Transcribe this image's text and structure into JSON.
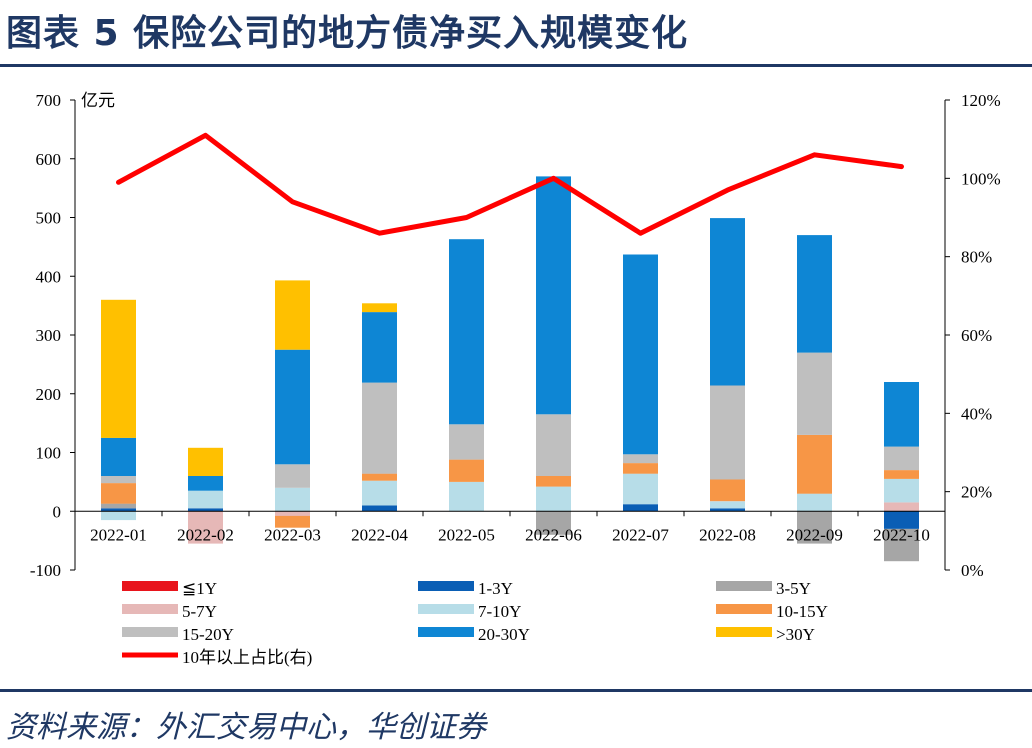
{
  "title": "图表 5  保险公司的地方债净买入规模变化",
  "source": "资料来源：外汇交易中心，华创证券",
  "chart_data": {
    "type": "bar",
    "stacked": true,
    "categories": [
      "2022-01",
      "2022-02",
      "2022-03",
      "2022-04",
      "2022-05",
      "2022-06",
      "2022-07",
      "2022-08",
      "2022-09",
      "2022-10"
    ],
    "y_left": {
      "unit": "亿元",
      "min": -100,
      "max": 700,
      "ticks": [
        -100,
        0,
        100,
        200,
        300,
        400,
        500,
        600,
        700
      ]
    },
    "y_right": {
      "min": 0,
      "max": 120,
      "ticks": [
        "0%",
        "20%",
        "40%",
        "60%",
        "80%",
        "100%",
        "120%"
      ]
    },
    "series": [
      {
        "name": "≦1Y",
        "color": "#e8141c",
        "values": [
          0,
          0,
          0,
          0,
          0,
          0,
          0,
          0,
          0,
          0
        ]
      },
      {
        "name": "1-3Y",
        "color": "#0a5eb5",
        "values": [
          5,
          5,
          0,
          10,
          0,
          0,
          12,
          5,
          0,
          -30
        ]
      },
      {
        "name": "3-5Y",
        "color": "#a6a6a6",
        "values": [
          8,
          0,
          0,
          0,
          0,
          -40,
          0,
          0,
          -55,
          -55
        ]
      },
      {
        "name": "5-7Y",
        "color": "#e6b8b7",
        "values": [
          0,
          -55,
          -8,
          0,
          0,
          0,
          0,
          0,
          0,
          15
        ]
      },
      {
        "name": "7-10Y",
        "color": "#b7dde8",
        "values": [
          -15,
          30,
          40,
          42,
          50,
          42,
          52,
          12,
          30,
          40
        ]
      },
      {
        "name": "10-15Y",
        "color": "#f79646",
        "values": [
          35,
          0,
          -20,
          12,
          38,
          18,
          18,
          37,
          100,
          15
        ]
      },
      {
        "name": "15-20Y",
        "color": "#bfbfbf",
        "values": [
          12,
          0,
          40,
          155,
          60,
          105,
          15,
          160,
          140,
          40
        ]
      },
      {
        "name": "20-30Y",
        "color": "#0e86d4",
        "values": [
          65,
          25,
          195,
          120,
          315,
          405,
          340,
          285,
          200,
          110
        ]
      },
      {
        "name": ">30Y",
        "color": "#ffc000",
        "values": [
          235,
          48,
          118,
          15,
          0,
          0,
          0,
          0,
          0,
          0
        ]
      }
    ],
    "line": {
      "name": "10年以上占比(右)",
      "color": "#ff0000",
      "values": [
        99,
        111,
        94,
        86,
        90,
        100,
        86,
        97,
        106,
        103
      ]
    }
  }
}
